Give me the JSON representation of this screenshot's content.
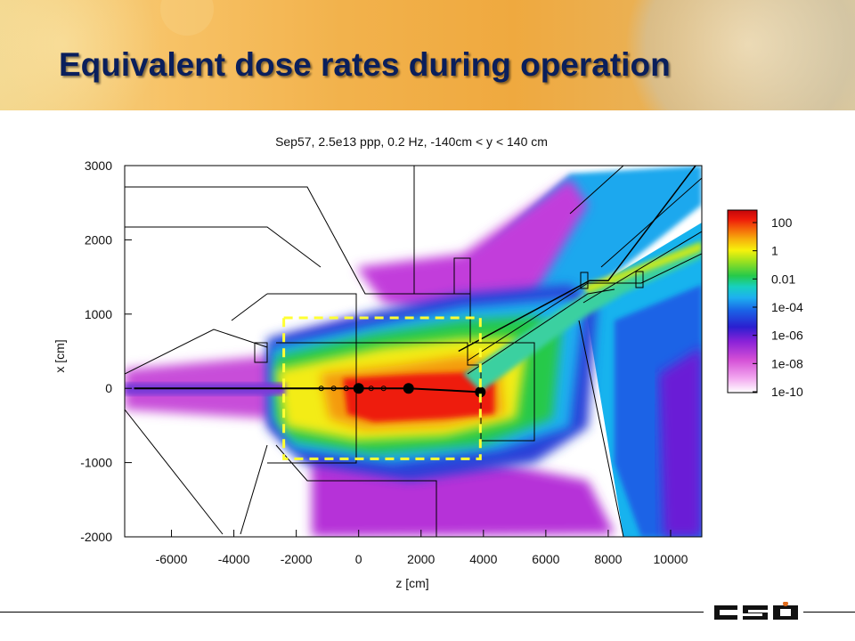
{
  "slide": {
    "title": "Equivalent dose rates during operation",
    "logo_text": "GSI"
  },
  "chart_data": {
    "type": "heatmap",
    "title": "Sep57, 2.5e13 ppp, 0.2 Hz, -140cm < y < 140 cm",
    "xlabel": "z [cm]",
    "ylabel": "x [cm]",
    "xlim": [
      -7500,
      11000
    ],
    "ylim": [
      -2000,
      3000
    ],
    "x_ticks": [
      -6000,
      -4000,
      -2000,
      0,
      2000,
      4000,
      6000,
      8000,
      10000
    ],
    "y_ticks": [
      -2000,
      -1000,
      0,
      1000,
      2000,
      3000
    ],
    "colorbar": {
      "scale": "log",
      "labels": [
        "100",
        "1",
        "0.01",
        "1e-04",
        "1e-06",
        "1e-08",
        "1e-10"
      ],
      "colors": [
        "#ffffff",
        "#f2a6ef",
        "#d44fd6",
        "#8a22d8",
        "#2a1fd0",
        "#1a63e6",
        "#1db0f0",
        "#17d0c0",
        "#26c94a",
        "#9de11f",
        "#f7f20c",
        "#f7b00c",
        "#f4600a",
        "#ee1a0a",
        "#c4060a"
      ]
    },
    "highlight_box": {
      "z": [
        -2400,
        3900
      ],
      "x": [
        -950,
        950
      ],
      "color": "#ffff33",
      "style": "dashed"
    },
    "beamline_points": [
      [
        -7200,
        0
      ],
      [
        -2300,
        0
      ],
      [
        0,
        0
      ],
      [
        1600,
        0
      ],
      [
        3900,
        -50
      ]
    ],
    "diagonal_beamline": [
      [
        3200,
        500
      ],
      [
        7400,
        1450
      ],
      [
        8000,
        1450
      ],
      [
        10800,
        3000
      ]
    ],
    "grid": false
  }
}
